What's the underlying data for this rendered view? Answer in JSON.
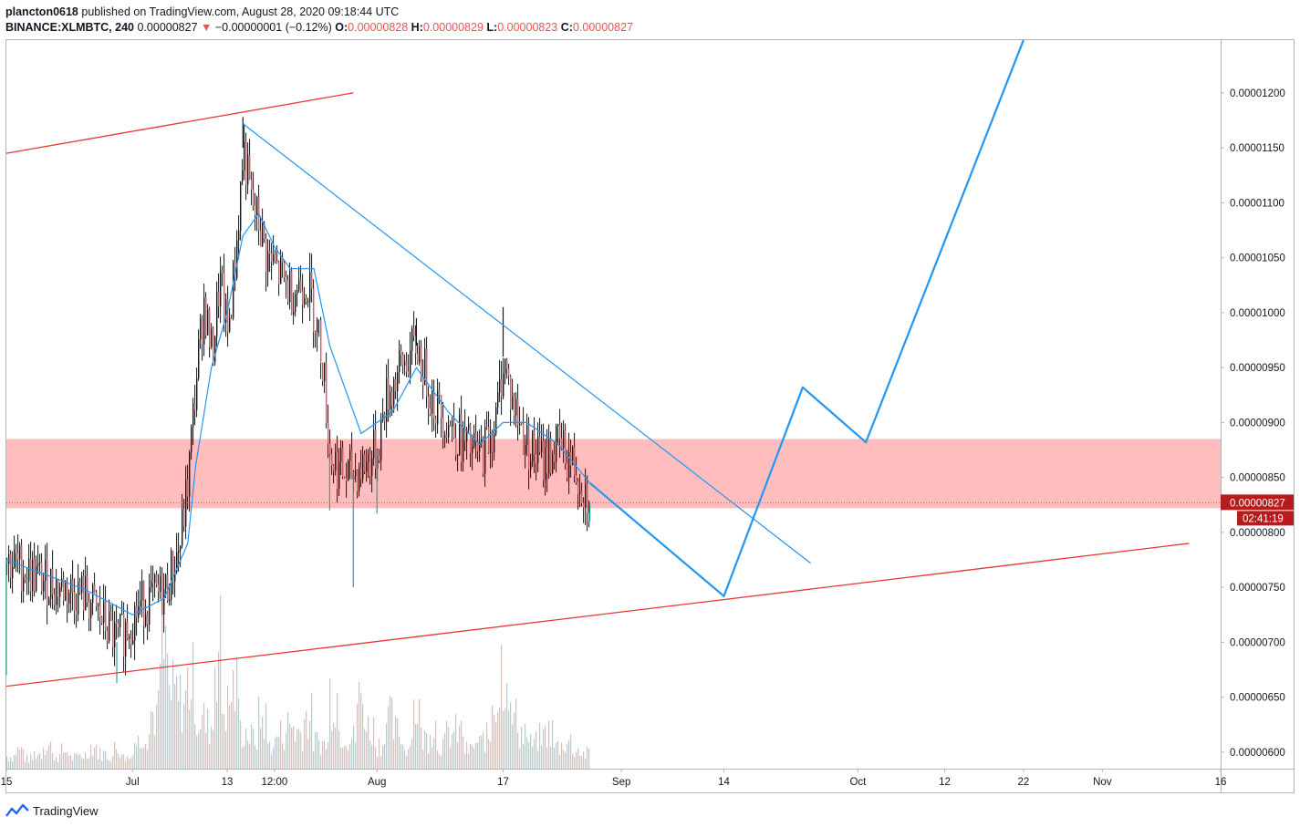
{
  "header": {
    "author": "plancton0618",
    "published_text": "published on TradingView.com, August 28, 2020 09:18:44 UTC",
    "symbol": "BINANCE:XLMBTC, 240",
    "last": "0.00000827",
    "arrow": "▼",
    "change": "−0.00000001 (−0.12%)",
    "o_label": "O:",
    "o": "0.00000828",
    "h_label": "H:",
    "h": "0.00000829",
    "l_label": "L:",
    "l": "0.00000823",
    "c_label": "C:",
    "c": "0.00000827"
  },
  "footer": {
    "brand": "TradingView",
    "logo_icon": "tradingview-logo-icon"
  },
  "colors": {
    "up": "#26a69a",
    "down": "#ef5350",
    "ma": "#2196f3",
    "zone": "#ffb9b9",
    "channel": "#e53935",
    "projection": "#2196f3",
    "last_badge": "#b71c1c"
  },
  "chart_data": {
    "type": "candlestick",
    "symbol": "XLMBTC",
    "exchange": "BINANCE",
    "interval": "240",
    "y_ticks": [
      "0.00001200",
      "0.00001150",
      "0.00001100",
      "0.00001050",
      "0.00001000",
      "0.00000950",
      "0.00000900",
      "0.00000850",
      "0.00000800",
      "0.00000750",
      "0.00000700",
      "0.00000650",
      "0.00000600"
    ],
    "y_tick_values": [
      1.2e-05,
      1.15e-05,
      1.1e-05,
      1.05e-05,
      1e-05,
      9.5e-06,
      9e-06,
      8.5e-06,
      8e-06,
      7.5e-06,
      7e-06,
      6.5e-06,
      6e-06
    ],
    "x_ticks": [
      "15",
      "Jul",
      "13",
      "12:00",
      "Aug",
      "17",
      "Sep",
      "14",
      "Oct",
      "12",
      "22",
      "Nov",
      "16"
    ],
    "x_tick_dates": [
      "2020-06-15",
      "2020-07-01",
      "2020-07-13",
      "2020-07-19",
      "2020-08-01",
      "2020-08-17",
      "2020-09-01",
      "2020-09-14",
      "2020-10-01",
      "2020-10-12",
      "2020-10-22",
      "2020-11-01",
      "2020-11-16"
    ],
    "x_range": [
      "2020-06-15",
      "2020-11-16"
    ],
    "y_range": [
      5.85e-06,
      1.248e-05
    ],
    "last_price_label": "0.00000827",
    "countdown": "02:41:19",
    "price_path": [
      [
        "2020-06-15",
        7.75e-06
      ],
      [
        "2020-06-20",
        7.55e-06
      ],
      [
        "2020-06-25",
        7.42e-06
      ],
      [
        "2020-06-29",
        7e-06
      ],
      [
        "2020-07-02",
        7.35e-06
      ],
      [
        "2020-07-05",
        7.45e-06
      ],
      [
        "2020-07-07",
        7.9e-06
      ],
      [
        "2020-07-08",
        8.5e-06
      ],
      [
        "2020-07-09",
        9.4e-06
      ],
      [
        "2020-07-10",
        1.01e-05
      ],
      [
        "2020-07-11",
        9.6e-06
      ],
      [
        "2020-07-12",
        1.03e-05
      ],
      [
        "2020-07-13",
        9.8e-06
      ],
      [
        "2020-07-14",
        1.05e-05
      ],
      [
        "2020-07-15",
        1.15e-05
      ],
      [
        "2020-07-16",
        1.1e-05
      ],
      [
        "2020-07-17",
        1.08e-05
      ],
      [
        "2020-07-18",
        1.05e-05
      ],
      [
        "2020-07-19",
        1.04e-05
      ],
      [
        "2020-07-21",
        1.02e-05
      ],
      [
        "2020-07-23",
        1.03e-05
      ],
      [
        "2020-07-24",
        1e-05
      ],
      [
        "2020-07-25",
        9.6e-06
      ],
      [
        "2020-07-26",
        8.7e-06
      ],
      [
        "2020-07-28",
        8.5e-06
      ],
      [
        "2020-07-30",
        8.6e-06
      ],
      [
        "2020-08-01",
        8.75e-06
      ],
      [
        "2020-08-02",
        9.2e-06
      ],
      [
        "2020-08-04",
        9.5e-06
      ],
      [
        "2020-08-06",
        9.7e-06
      ],
      [
        "2020-08-08",
        9.2e-06
      ],
      [
        "2020-08-10",
        9e-06
      ],
      [
        "2020-08-12",
        8.8e-06
      ],
      [
        "2020-08-14",
        8.7e-06
      ],
      [
        "2020-08-16",
        9e-06
      ],
      [
        "2020-08-17",
        9.6e-06
      ],
      [
        "2020-08-18",
        9.2e-06
      ],
      [
        "2020-08-20",
        8.8e-06
      ],
      [
        "2020-08-22",
        8.65e-06
      ],
      [
        "2020-08-24",
        8.8e-06
      ],
      [
        "2020-08-26",
        8.6e-06
      ],
      [
        "2020-08-28",
        8.27e-06
      ]
    ],
    "wicks": [
      [
        "2020-06-15",
        6.7e-06
      ],
      [
        "2020-06-29",
        6.63e-06
      ],
      [
        "2020-07-15",
        1.178e-05
      ],
      [
        "2020-07-26",
        8.2e-06
      ],
      [
        "2020-07-29",
        7.5e-06
      ],
      [
        "2020-08-01",
        8.17e-06
      ],
      [
        "2020-08-06",
        9.95e-06
      ],
      [
        "2020-08-17",
        1.005e-05
      ],
      [
        "2020-08-28",
        8.1e-06
      ]
    ],
    "moving_average": [
      [
        "2020-06-15",
        7.75e-06
      ],
      [
        "2020-06-25",
        7.48e-06
      ],
      [
        "2020-07-01",
        7.25e-06
      ],
      [
        "2020-07-05",
        7.4e-06
      ],
      [
        "2020-07-08",
        7.9e-06
      ],
      [
        "2020-07-09",
        8.6e-06
      ],
      [
        "2020-07-11",
        9.5e-06
      ],
      [
        "2020-07-13",
        1e-05
      ],
      [
        "2020-07-15",
        1.07e-05
      ],
      [
        "2020-07-17",
        1.09e-05
      ],
      [
        "2020-07-19",
        1.06e-05
      ],
      [
        "2020-07-21",
        1.04e-05
      ],
      [
        "2020-07-24",
        1.04e-05
      ],
      [
        "2020-07-26",
        9.7e-06
      ],
      [
        "2020-07-30",
        8.9e-06
      ],
      [
        "2020-08-03",
        9.1e-06
      ],
      [
        "2020-08-06",
        9.5e-06
      ],
      [
        "2020-08-10",
        9.1e-06
      ],
      [
        "2020-08-14",
        8.8e-06
      ],
      [
        "2020-08-17",
        9e-06
      ],
      [
        "2020-08-20",
        9e-06
      ],
      [
        "2020-08-24",
        8.8e-06
      ],
      [
        "2020-08-28",
        8.45e-06
      ]
    ],
    "volume_heights": [
      0.1,
      0.15,
      0.08,
      0.12,
      0.2,
      0.1,
      0.14,
      0.09,
      0.11,
      0.18,
      0.12,
      0.1,
      0.16,
      0.09,
      0.22,
      0.3,
      0.45,
      0.9,
      0.6,
      0.55,
      0.7,
      0.4,
      0.35,
      1.0,
      0.5,
      0.65,
      0.3,
      0.25,
      0.4,
      0.2,
      0.28,
      0.35,
      0.3,
      0.42,
      0.22,
      0.2,
      0.62,
      0.3,
      0.25,
      0.55,
      0.33,
      0.2,
      0.4,
      0.3,
      0.18,
      0.5,
      0.25,
      0.35,
      0.2,
      0.28,
      0.3,
      0.15,
      0.2,
      0.25,
      0.6,
      0.85,
      0.4,
      0.3,
      0.2,
      0.25,
      0.3,
      0.18,
      0.22,
      0.15,
      0.12
    ],
    "zone": {
      "top": 8.85e-06,
      "bottom": 8.22e-06
    },
    "channel_top": [
      [
        "2020-06-15",
        1.145e-05
      ],
      [
        "2020-07-29",
        1.2e-05
      ]
    ],
    "channel_bottom": [
      [
        "2020-06-15",
        6.6e-06
      ],
      [
        "2020-11-12",
        7.9e-06
      ]
    ],
    "descending_trendline": [
      [
        "2020-07-15",
        1.172e-05
      ],
      [
        "2020-09-25",
        7.72e-06
      ]
    ],
    "projection": [
      [
        "2020-08-28",
        8.45e-06
      ],
      [
        "2020-09-14",
        7.42e-06
      ],
      [
        "2020-09-24",
        9.32e-06
      ],
      [
        "2020-10-02",
        8.82e-06
      ],
      [
        "2020-10-22",
        1.248e-05
      ]
    ]
  }
}
